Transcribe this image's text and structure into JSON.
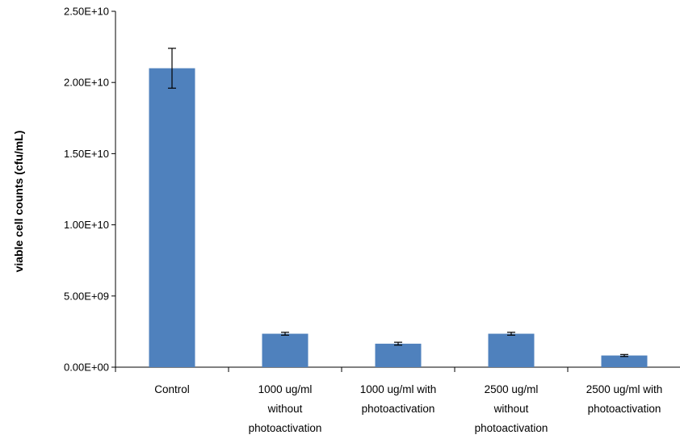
{
  "chart_data": {
    "type": "bar",
    "title": "",
    "xlabel": "",
    "ylabel": "viable cell counts (cfu/mL)",
    "ylim": [
      0,
      25000000000
    ],
    "yticks": [
      0,
      5000000000,
      10000000000,
      15000000000,
      20000000000,
      25000000000
    ],
    "ytick_labels": [
      "0.00E+00",
      "5.00E+09",
      "1.00E+10",
      "1.50E+10",
      "2.00E+10",
      "2.50E+10"
    ],
    "categories": [
      [
        "Control"
      ],
      [
        "1000 ug/ml",
        "without",
        "photoactivation"
      ],
      [
        "1000 ug/ml with",
        "photoactivation"
      ],
      [
        "2500 ug/ml",
        "without",
        "photoactivation"
      ],
      [
        "2500 ug/ml with",
        "photoactivation"
      ]
    ],
    "values": [
      21000000000,
      2350000000,
      1650000000,
      2350000000,
      820000000
    ],
    "errors": [
      1400000000,
      100000000,
      100000000,
      100000000,
      70000000
    ],
    "grid": false,
    "legend": "none",
    "colors": {
      "bar": "#4F81BD",
      "axis": "#000000",
      "error_bar": "#000000"
    }
  }
}
